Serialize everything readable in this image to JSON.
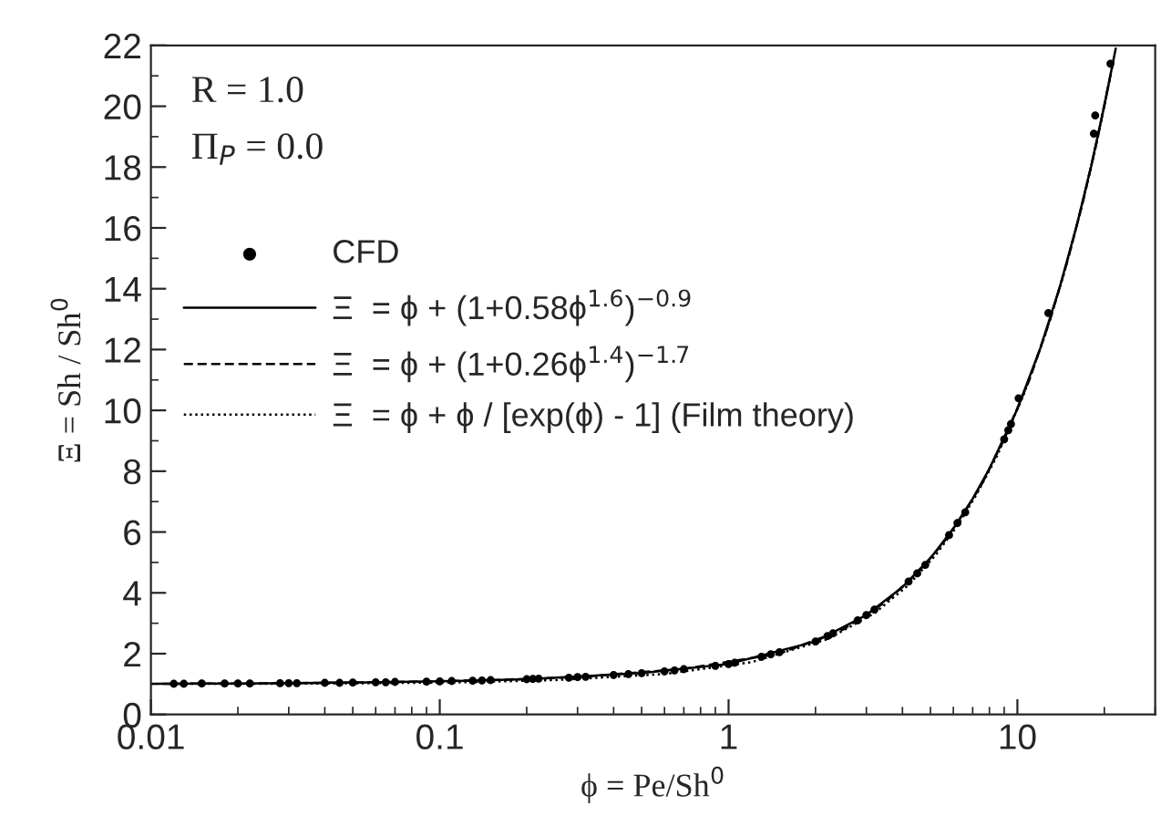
{
  "chart_data": {
    "type": "line",
    "xlabel": "ϕ = Pe/Sh$^{0}$",
    "ylabel": "Ξ = Sh / Sh$^{0}$",
    "annotations": [
      "R = 1.0",
      "Π$_{P}$ = 0.0"
    ],
    "xlim": [
      0.01,
      30
    ],
    "xticks": [
      0.01,
      0.1,
      1,
      10
    ],
    "log": "x",
    "ylim": [
      0,
      22
    ],
    "yticks": [
      0,
      2,
      4,
      6,
      8,
      10,
      12,
      14,
      16,
      18,
      20,
      22
    ],
    "grid": false,
    "legend": "top left",
    "series": [
      {
        "name": "CFD",
        "type": "scatter",
        "marker": "circle",
        "color": "#000000",
        "x": [
          0.012,
          0.013,
          0.015,
          0.018,
          0.02,
          0.022,
          0.028,
          0.03,
          0.032,
          0.04,
          0.045,
          0.05,
          0.06,
          0.065,
          0.07,
          0.09,
          0.1,
          0.11,
          0.13,
          0.14,
          0.15,
          0.2,
          0.21,
          0.22,
          0.28,
          0.3,
          0.32,
          0.4,
          0.45,
          0.5,
          0.6,
          0.65,
          0.7,
          0.9,
          1.0,
          1.05,
          1.3,
          1.4,
          1.5,
          2.0,
          2.2,
          2.3,
          2.8,
          3.0,
          3.2,
          4.2,
          4.5,
          4.8,
          5.8,
          6.2,
          6.6,
          9.0,
          9.3,
          9.5,
          10.1,
          12.8,
          18.4,
          18.6,
          21.0
        ],
        "values": [
          1.01,
          1.01,
          1.02,
          1.02,
          1.02,
          1.02,
          1.03,
          1.03,
          1.03,
          1.04,
          1.04,
          1.05,
          1.06,
          1.06,
          1.07,
          1.08,
          1.09,
          1.1,
          1.11,
          1.12,
          1.13,
          1.16,
          1.17,
          1.18,
          1.21,
          1.23,
          1.24,
          1.3,
          1.33,
          1.36,
          1.42,
          1.45,
          1.49,
          1.6,
          1.66,
          1.7,
          1.9,
          1.98,
          2.05,
          2.4,
          2.58,
          2.67,
          3.1,
          3.27,
          3.45,
          4.37,
          4.64,
          4.92,
          5.9,
          6.3,
          6.65,
          9.05,
          9.35,
          9.55,
          10.4,
          13.2,
          19.1,
          19.7,
          21.4
        ]
      },
      {
        "name": "Ξ  = ϕ + (1+0.58ϕ$^{1.6}$)$^{−0.9}$",
        "line_style": "solid",
        "color": "#000000",
        "x": [
          0.01,
          0.02,
          0.05,
          0.1,
          0.2,
          0.5,
          1,
          2,
          3,
          4,
          5,
          6,
          7,
          8,
          10,
          12,
          14,
          16,
          18,
          20,
          21.9
        ],
        "values": [
          1.01,
          1.02,
          1.05,
          1.09,
          1.16,
          1.36,
          1.66,
          2.4,
          3.27,
          4.19,
          5.14,
          6.11,
          7.09,
          8.08,
          10.05,
          12.04,
          14.03,
          16.03,
          18.02,
          20.02,
          21.9
        ]
      },
      {
        "name": "Ξ  = ϕ + (1+0.26ϕ$^{1.4}$)$^{−1.7}$",
        "line_style": "dashed",
        "color": "#000000",
        "x": [
          0.011,
          0.03,
          0.07,
          0.15,
          0.3,
          0.7,
          1.5,
          2.5,
          3.5,
          4.5,
          5.5,
          6.5,
          7.5,
          9,
          11,
          13,
          15,
          17,
          19,
          21.5
        ],
        "values": [
          1.01,
          1.03,
          1.07,
          1.13,
          1.23,
          1.5,
          2.0,
          2.8,
          3.7,
          4.65,
          5.6,
          6.6,
          7.55,
          9.05,
          11.0,
          13.0,
          15.0,
          17.0,
          19.0,
          21.5
        ]
      },
      {
        "name": "Ξ  = ϕ + ϕ / [exp(ϕ) - 1] (Film theory)",
        "line_style": "dotted",
        "color": "#000000",
        "x": [
          0.012,
          0.025,
          0.06,
          0.12,
          0.25,
          0.6,
          1.2,
          2.2,
          3.2,
          4.2,
          5.2,
          6.2,
          7.2,
          8.5,
          10.5,
          12.5,
          14.5,
          16.5,
          18.5,
          21.0
        ],
        "values": [
          1.01,
          1.01,
          1.03,
          1.06,
          1.13,
          1.33,
          1.72,
          2.48,
          3.33,
          4.26,
          5.23,
          6.21,
          7.21,
          8.5,
          10.5,
          12.5,
          14.5,
          16.5,
          18.5,
          21.0
        ]
      }
    ]
  }
}
